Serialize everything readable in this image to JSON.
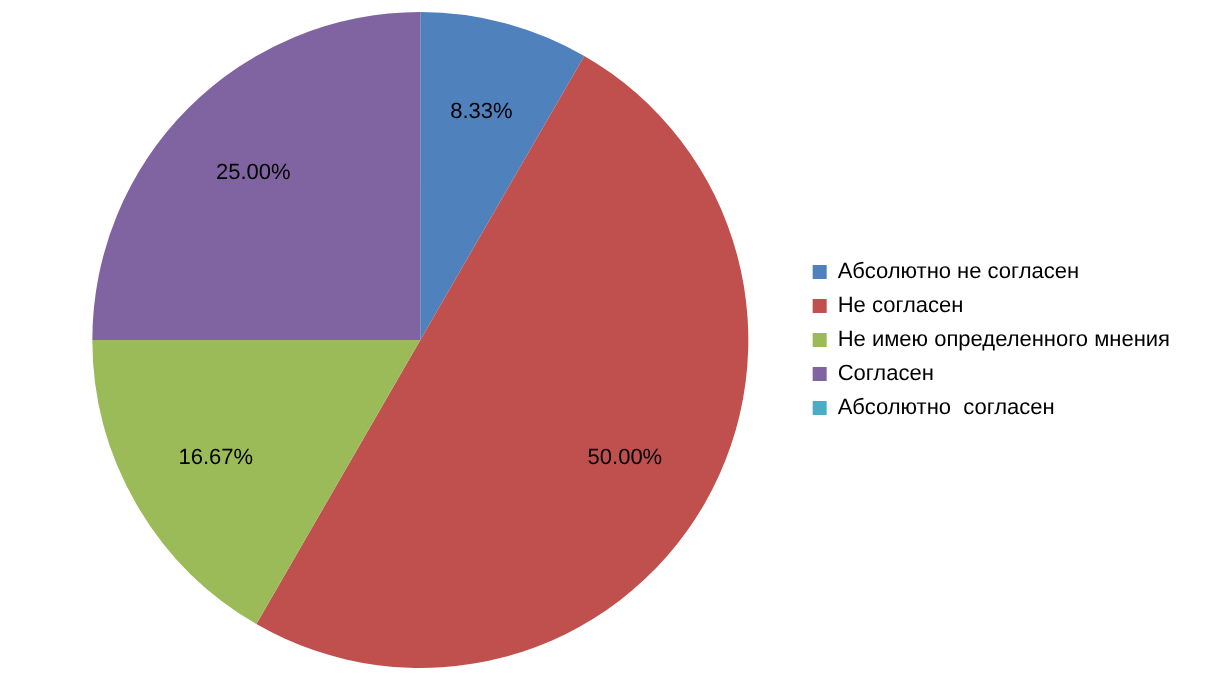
{
  "chart_data": {
    "type": "pie",
    "categories": [
      "Абсолютно не согласен",
      "Не согласен",
      "Не имею определенного мнения",
      "Согласен",
      "Абсолютно  согласен"
    ],
    "values": [
      8.33,
      50,
      16.67,
      25,
      0
    ],
    "colors": [
      "#4f81bd",
      "#c0504d",
      "#9bbb59",
      "#8064a2",
      "#4bacc6"
    ],
    "value_labels": [
      "8.33%",
      "50.00%",
      "16.67%",
      "25.00%",
      null
    ],
    "legend": "right"
  }
}
